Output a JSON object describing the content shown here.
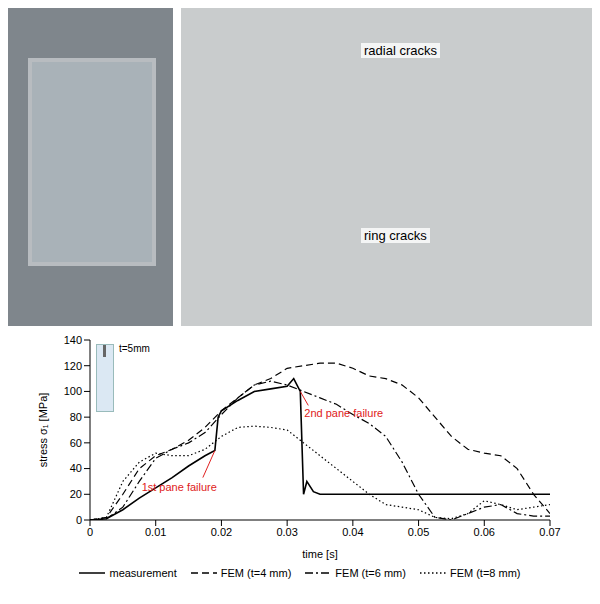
{
  "photos": {
    "labels": [
      "radial cracks",
      "ring cracks"
    ]
  },
  "chart_data": {
    "type": "line",
    "x_label": "time [s]",
    "y_label": "stress σ₁ [MPa]",
    "xlim": [
      0,
      0.07
    ],
    "xticks": [
      0,
      0.01,
      0.02,
      0.03,
      0.04,
      0.05,
      0.06,
      0.07
    ],
    "ylim": [
      0,
      140
    ],
    "yticks": [
      0,
      20,
      40,
      60,
      80,
      100,
      120,
      140
    ],
    "grid": false,
    "legend": "bottom",
    "inset_label": "t=5mm",
    "annotations": [
      {
        "text": "1st pane failure",
        "x": 0.019,
        "y": 54,
        "color": "#e02020"
      },
      {
        "text": "2nd pane failure",
        "x": 0.032,
        "y": 100,
        "color": "#e02020"
      }
    ],
    "series": [
      {
        "name": "measurement",
        "color": "#000000",
        "line_style": "solid",
        "x": [
          0,
          0.0025,
          0.005,
          0.0075,
          0.01,
          0.0125,
          0.015,
          0.0175,
          0.019,
          0.0195,
          0.02,
          0.0225,
          0.025,
          0.0275,
          0.03,
          0.031,
          0.032,
          0.0325,
          0.033,
          0.034,
          0.035,
          0.04,
          0.05,
          0.06,
          0.07
        ],
        "values": [
          0,
          1,
          8,
          17,
          25,
          33,
          42,
          50,
          54,
          80,
          85,
          93,
          100,
          102,
          104,
          110,
          100,
          20,
          30,
          22,
          20,
          20,
          20,
          20,
          20
        ]
      },
      {
        "name": "FEM (t=4 mm)",
        "color": "#000000",
        "line_style": "dashed",
        "x": [
          0,
          0.0025,
          0.005,
          0.0075,
          0.01,
          0.0125,
          0.015,
          0.0175,
          0.02,
          0.0225,
          0.025,
          0.0275,
          0.03,
          0.0325,
          0.035,
          0.0375,
          0.04,
          0.0425,
          0.045,
          0.0475,
          0.05,
          0.0525,
          0.055,
          0.0575,
          0.06,
          0.0625,
          0.065,
          0.0675,
          0.07
        ],
        "values": [
          0,
          2,
          20,
          40,
          50,
          55,
          62,
          72,
          85,
          95,
          105,
          110,
          118,
          120,
          122,
          122,
          118,
          112,
          110,
          105,
          95,
          80,
          65,
          55,
          52,
          50,
          40,
          20,
          5
        ]
      },
      {
        "name": "FEM (t=6 mm)",
        "color": "#000000",
        "line_style": "dashdot",
        "x": [
          0,
          0.0025,
          0.005,
          0.0075,
          0.01,
          0.0125,
          0.015,
          0.0175,
          0.02,
          0.0225,
          0.025,
          0.0275,
          0.03,
          0.0325,
          0.035,
          0.0375,
          0.04,
          0.0425,
          0.045,
          0.0475,
          0.05,
          0.0525,
          0.055,
          0.0575,
          0.06,
          0.0625,
          0.065,
          0.0675,
          0.07
        ],
        "values": [
          0,
          1,
          10,
          30,
          48,
          55,
          60,
          68,
          82,
          95,
          105,
          108,
          105,
          100,
          95,
          90,
          82,
          75,
          65,
          45,
          20,
          2,
          0,
          5,
          10,
          12,
          5,
          3,
          3
        ]
      },
      {
        "name": "FEM (t=8 mm)",
        "color": "#000000",
        "line_style": "dotted",
        "x": [
          0,
          0.0025,
          0.005,
          0.0075,
          0.01,
          0.0125,
          0.015,
          0.0175,
          0.02,
          0.0225,
          0.025,
          0.0275,
          0.03,
          0.0325,
          0.035,
          0.0375,
          0.04,
          0.0425,
          0.045,
          0.0475,
          0.05,
          0.0525,
          0.055,
          0.0575,
          0.06,
          0.0625,
          0.065,
          0.0675,
          0.07
        ],
        "values": [
          0,
          2,
          30,
          45,
          52,
          50,
          50,
          55,
          65,
          72,
          73,
          72,
          70,
          60,
          50,
          40,
          30,
          20,
          12,
          10,
          8,
          2,
          1,
          5,
          15,
          12,
          8,
          10,
          12
        ]
      }
    ]
  }
}
